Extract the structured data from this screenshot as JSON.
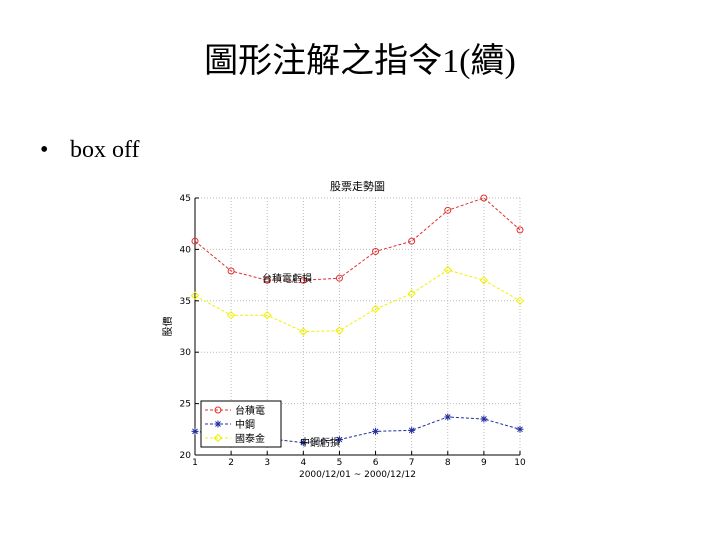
{
  "header": {
    "title": "圖形注解之指令1(續)"
  },
  "bullets": [
    "box off"
  ],
  "chart_data": {
    "type": "line",
    "title": "股票走勢圖",
    "xlabel": "2000/12/01 ~ 2000/12/12",
    "ylabel": "股價",
    "x": [
      1,
      2,
      3,
      4,
      5,
      6,
      7,
      8,
      9,
      10
    ],
    "xlim": [
      1,
      10
    ],
    "xticks": [
      1,
      2,
      3,
      4,
      5,
      6,
      7,
      8,
      9,
      10
    ],
    "ylim": [
      20,
      45
    ],
    "yticks": [
      20,
      25,
      30,
      35,
      40,
      45
    ],
    "grid": true,
    "box": false,
    "legend": "lower left",
    "series": [
      {
        "name": "台積電",
        "color": "#e03030",
        "marker": "o",
        "values": [
          40.8,
          37.9,
          37,
          37,
          37.2,
          39.8,
          40.8,
          43.8,
          45,
          41.9
        ]
      },
      {
        "name": "中鋼",
        "color": "#2030a0",
        "marker": "*",
        "values": [
          22.3,
          21.9,
          21.6,
          21.2,
          21.5,
          22.3,
          22.4,
          23.7,
          23.5,
          22.5
        ]
      },
      {
        "name": "國泰金",
        "color": "#f0f000",
        "marker": "d",
        "values": [
          35.5,
          33.6,
          33.6,
          32,
          32.1,
          34.2,
          35.7,
          38,
          37,
          35
        ]
      }
    ],
    "annotations": [
      "台積電虧損",
      "中鋼虧損"
    ]
  }
}
